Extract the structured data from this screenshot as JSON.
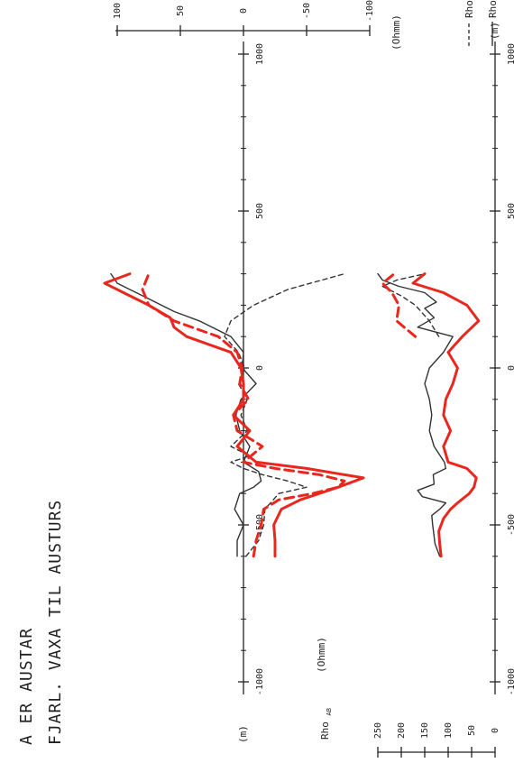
{
  "chart_data": {
    "type": "line",
    "title": "A ER AUSTAR",
    "subtitle": "FJARL. VAXA TIL AUSTURS",
    "xlabel": "(m)",
    "xlim": [
      -1000,
      1000
    ],
    "x_ticks": [
      -1000,
      -500,
      0,
      500,
      1000
    ],
    "legend": [
      {
        "style": "dashed",
        "name": "Rho",
        "sub": "AC-AB"
      },
      {
        "style": "solid",
        "name": "Rho",
        "sub": "BC-AB"
      }
    ],
    "panels": [
      {
        "name": "difference",
        "ylabel": "(Ohmm)",
        "ylim": [
          -100,
          100
        ],
        "y_ticks": [
          100,
          50,
          0,
          -50,
          -100
        ],
        "series": [
          {
            "style": "dashed",
            "color": "#333333",
            "x": [
              -600,
              -550,
              -500,
              -450,
              -400,
              -380,
              -360,
              -340,
              -320,
              -300,
              -280,
              -250,
              -200,
              -150,
              -100,
              -50,
              0,
              50,
              100,
              150,
              200,
              250,
              300
            ],
            "values": [
              -2,
              -12,
              -16,
              -17,
              -28,
              -50,
              -35,
              -15,
              0,
              10,
              -5,
              10,
              -3,
              2,
              -3,
              4,
              -1,
              4,
              15,
              10,
              -8,
              -35,
              -80
            ]
          },
          {
            "style": "solid",
            "color": "#333333",
            "x": [
              -600,
              -550,
              -500,
              -450,
              -400,
              -380,
              -360,
              -330,
              -300,
              -250,
              -200,
              -150,
              -100,
              -50,
              0,
              50,
              100,
              150,
              180,
              220,
              250,
              270,
              300
            ],
            "values": [
              5,
              5,
              0,
              7,
              3,
              -8,
              -14,
              -12,
              0,
              -5,
              3,
              6,
              2,
              -10,
              1,
              0,
              10,
              35,
              55,
              75,
              90,
              100,
              105
            ]
          },
          {
            "style": "dashed",
            "color": "#e8281e",
            "x": [
              -600,
              -550,
              -500,
              -450,
              -420,
              -400,
              -380,
              -360,
              -340,
              -320,
              -300,
              -250,
              -200,
              -150,
              -100,
              -50,
              0,
              50,
              100,
              150,
              200,
              250,
              300
            ],
            "values": [
              -8,
              -10,
              -14,
              -16,
              -28,
              -55,
              -75,
              -80,
              -60,
              -25,
              0,
              -15,
              5,
              8,
              -4,
              3,
              1,
              5,
              20,
              55,
              75,
              80,
              75
            ]
          },
          {
            "style": "solid",
            "color": "#e8281e",
            "x": [
              -600,
              -550,
              -500,
              -450,
              -420,
              -400,
              -380,
              -350,
              -320,
              -300,
              -250,
              -200,
              -150,
              -100,
              -50,
              0,
              50,
              100,
              130,
              160,
              200,
              240,
              270,
              300
            ],
            "values": [
              -25,
              -25,
              -24,
              -30,
              -45,
              -60,
              -75,
              -95,
              -50,
              -10,
              5,
              -5,
              8,
              0,
              0,
              2,
              10,
              45,
              55,
              58,
              75,
              95,
              110,
              90
            ]
          }
        ]
      },
      {
        "name": "apparent-resistivity",
        "ylabel": "(Ohmm)",
        "y_axis_label": "Rho",
        "y_axis_label_sub": "AB",
        "ylim": [
          0,
          250
        ],
        "y_ticks": [
          0,
          50,
          100,
          150,
          200,
          250
        ],
        "series": [
          {
            "style": "dashed",
            "color": "#333333",
            "x": [
              100,
              150,
              200,
              230,
              260,
              280,
              300
            ],
            "values": [
              120,
              140,
              170,
              200,
              240,
              210,
              150
            ]
          },
          {
            "style": "solid",
            "color": "#333333",
            "x": [
              -600,
              -560,
              -500,
              -470,
              -450,
              -430,
              -410,
              -390,
              -370,
              -340,
              -320,
              -300,
              -250,
              -200,
              -150,
              -100,
              -50,
              0,
              50,
              100,
              130,
              160,
              190,
              210,
              240,
              260,
              280,
              300
            ],
            "values": [
              118,
              128,
              133,
              135,
              118,
              105,
              155,
              165,
              130,
              132,
              105,
              108,
              130,
              140,
              135,
              140,
              150,
              140,
              110,
              90,
              165,
              130,
              150,
              125,
              150,
              205,
              240,
              250
            ]
          },
          {
            "style": "dashed",
            "color": "#e8281e",
            "x": [
              100,
              150,
              200,
              240,
              270,
              300
            ],
            "values": [
              170,
              210,
              205,
              220,
              240,
              215
            ]
          },
          {
            "style": "solid",
            "color": "#e8281e",
            "x": [
              -600,
              -560,
              -520,
              -480,
              -450,
              -430,
              -400,
              -380,
              -350,
              -320,
              -300,
              -250,
              -200,
              -150,
              -100,
              -50,
              0,
              50,
              100,
              150,
              200,
              240,
              270,
              300
            ],
            "values": [
              115,
              118,
              120,
              110,
              95,
              80,
              55,
              45,
              40,
              60,
              100,
              110,
              95,
              110,
              105,
              90,
              80,
              100,
              70,
              35,
              60,
              110,
              175,
              150
            ]
          }
        ]
      }
    ]
  }
}
